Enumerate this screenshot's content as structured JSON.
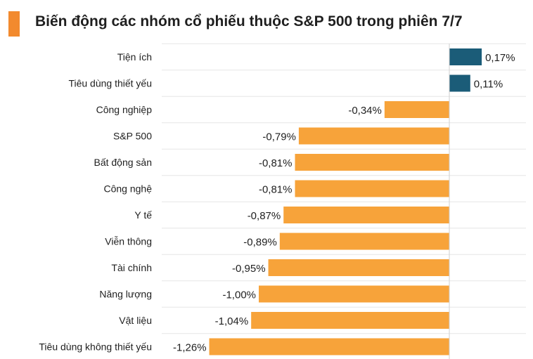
{
  "title": "Biến động các nhóm cổ phiếu thuộc S&P 500 trong phiên 7/7",
  "colors": {
    "positive": "#1b5c78",
    "negative": "#f7a33a",
    "accent": "#f28a2e",
    "grid": "#e6e6e6",
    "text": "#1f1f1f"
  },
  "chart_data": {
    "type": "bar",
    "orientation": "horizontal",
    "categories": [
      "Tiện ích",
      "Tiêu dùng thiết yếu",
      "Công nghiệp",
      "S&P 500",
      "Bất động sản",
      "Công nghệ",
      "Y tế",
      "Viễn thông",
      "Tài chính",
      "Năng lượng",
      "Vật liệu",
      "Tiêu dùng không thiết yếu"
    ],
    "values": [
      0.17,
      0.11,
      -0.34,
      -0.79,
      -0.81,
      -0.81,
      -0.87,
      -0.89,
      -0.95,
      -1.0,
      -1.04,
      -1.26
    ],
    "labels": [
      "0,17%",
      "0,11%",
      "-0,34%",
      "-0,79%",
      "-0,81%",
      "-0,81%",
      "-0,87%",
      "-0,89%",
      "-0,95%",
      "-1,00%",
      "-1,04%",
      "-1,26%"
    ],
    "unit": "%",
    "grid": true
  }
}
